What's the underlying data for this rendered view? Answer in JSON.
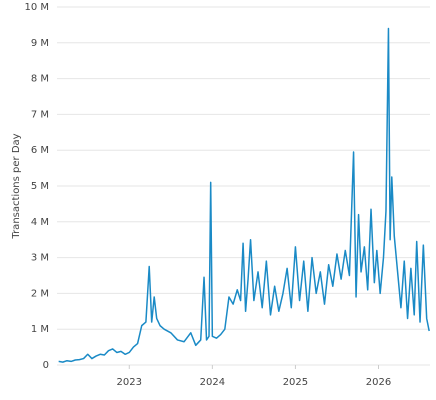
{
  "chart_data": {
    "type": "line",
    "y_label": "Transactions per Day",
    "x": [
      2022.15,
      2022.2,
      2022.25,
      2022.3,
      2022.35,
      2022.4,
      2022.45,
      2022.5,
      2022.55,
      2022.6,
      2022.65,
      2022.7,
      2022.75,
      2022.8,
      2022.85,
      2022.9,
      2022.95,
      2023.0,
      2023.05,
      2023.1,
      2023.15,
      2023.2,
      2023.24,
      2023.27,
      2023.3,
      2023.33,
      2023.37,
      2023.42,
      2023.5,
      2023.58,
      2023.66,
      2023.74,
      2023.8,
      2023.86,
      2023.9,
      2023.93,
      2023.96,
      2023.98,
      2024.0,
      2024.05,
      2024.1,
      2024.15,
      2024.2,
      2024.25,
      2024.3,
      2024.34,
      2024.37,
      2024.4,
      2024.43,
      2024.46,
      2024.5,
      2024.55,
      2024.6,
      2024.65,
      2024.7,
      2024.75,
      2024.8,
      2024.85,
      2024.9,
      2024.95,
      2025.0,
      2025.05,
      2025.1,
      2025.15,
      2025.2,
      2025.25,
      2025.3,
      2025.35,
      2025.4,
      2025.45,
      2025.5,
      2025.55,
      2025.6,
      2025.65,
      2025.7,
      2025.73,
      2025.76,
      2025.79,
      2025.83,
      2025.87,
      2025.91,
      2025.95,
      2025.98,
      2026.02,
      2026.06,
      2026.09,
      2026.12,
      2026.14,
      2026.16,
      2026.19,
      2026.23,
      2026.27,
      2026.31,
      2026.35,
      2026.39,
      2026.43,
      2026.46,
      2026.5,
      2026.54,
      2026.58,
      2026.61
    ],
    "series": [
      {
        "color": "#1a8ac6",
        "values": [
          0.1,
          0.08,
          0.12,
          0.1,
          0.14,
          0.15,
          0.18,
          0.3,
          0.18,
          0.25,
          0.3,
          0.28,
          0.4,
          0.45,
          0.35,
          0.38,
          0.3,
          0.35,
          0.5,
          0.6,
          1.1,
          1.2,
          2.75,
          1.2,
          1.9,
          1.3,
          1.1,
          1.0,
          0.9,
          0.7,
          0.65,
          0.9,
          0.55,
          0.7,
          2.45,
          0.7,
          0.8,
          5.1,
          0.8,
          0.75,
          0.85,
          1.0,
          1.9,
          1.7,
          2.1,
          1.8,
          3.4,
          1.5,
          2.4,
          3.5,
          1.8,
          2.6,
          1.6,
          2.9,
          1.4,
          2.2,
          1.5,
          2.0,
          2.7,
          1.6,
          3.3,
          1.8,
          2.9,
          1.5,
          3.0,
          2.0,
          2.6,
          1.7,
          2.8,
          2.2,
          3.1,
          2.4,
          3.2,
          2.5,
          5.95,
          1.9,
          4.2,
          2.6,
          3.3,
          2.1,
          4.35,
          2.3,
          3.2,
          2.0,
          3.0,
          4.3,
          9.4,
          3.5,
          5.25,
          3.6,
          2.6,
          1.6,
          2.9,
          1.3,
          2.7,
          1.4,
          3.45,
          1.2,
          3.35,
          1.3,
          0.95
        ]
      }
    ],
    "xlim": [
      2022.13,
      2026.62
    ],
    "xticks": [
      2023,
      2024,
      2025,
      2026
    ],
    "ylim": [
      0,
      10
    ],
    "yticks": [
      0,
      {
        "value": 1,
        "label": "1 M"
      },
      {
        "value": 2,
        "label": "2 M"
      },
      {
        "value": 3,
        "label": "3 M"
      },
      {
        "value": 4,
        "label": "4 M"
      },
      {
        "value": 5,
        "label": "5 M"
      },
      {
        "value": 6,
        "label": "6 M"
      },
      {
        "value": 7,
        "label": "7 M"
      },
      {
        "value": 8,
        "label": "8 M"
      },
      {
        "value": 9,
        "label": "9 M"
      },
      {
        "value": 10,
        "label": "10 M"
      }
    ],
    "grid": true
  }
}
